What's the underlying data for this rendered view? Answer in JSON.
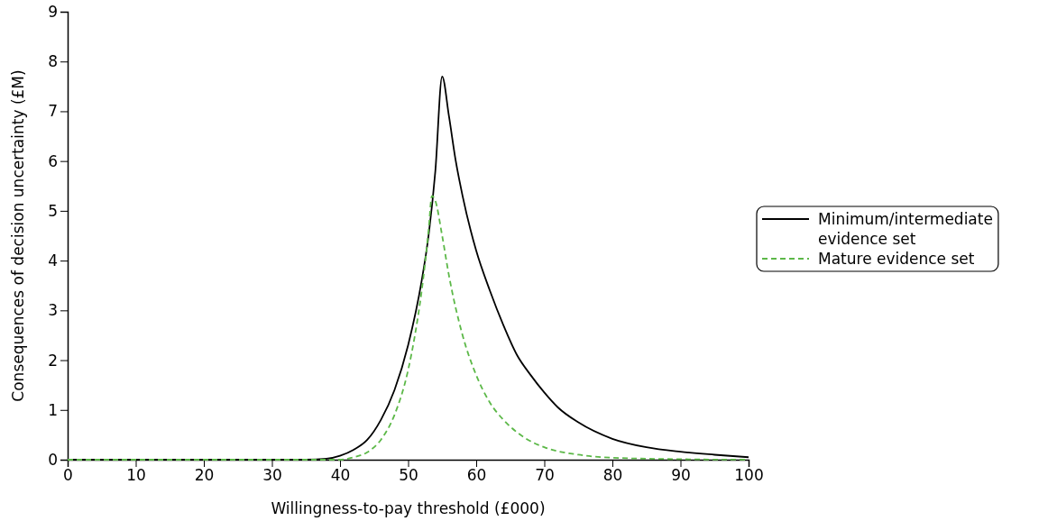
{
  "chart_data": {
    "type": "line",
    "xlabel": "Willingness-to-pay threshold (£000)",
    "ylabel": "Consequences of decision uncertainty (£M)",
    "xlim": [
      0,
      100
    ],
    "xticks": [
      0,
      10,
      20,
      30,
      40,
      50,
      60,
      70,
      80,
      90,
      100
    ],
    "ylim": [
      0,
      9
    ],
    "yticks": [
      0,
      1,
      2,
      3,
      4,
      5,
      6,
      7,
      8,
      9
    ],
    "grid": false,
    "legend": "right",
    "series": [
      {
        "name": "Minimum/intermediate evidence set",
        "color": "#000000",
        "line_style": "solid",
        "x": [
          0,
          35,
          38,
          40,
          42,
          44,
          46,
          48,
          50,
          52,
          53,
          54,
          55,
          56,
          57,
          58,
          60,
          62,
          64,
          66,
          68,
          70,
          72,
          75,
          80,
          85,
          90,
          95,
          100
        ],
        "values": [
          0,
          0,
          0.02,
          0.08,
          0.2,
          0.4,
          0.8,
          1.4,
          2.3,
          3.6,
          4.5,
          5.8,
          7.7,
          6.9,
          6.0,
          5.3,
          4.2,
          3.4,
          2.7,
          2.1,
          1.7,
          1.35,
          1.05,
          0.75,
          0.42,
          0.25,
          0.16,
          0.1,
          0.05
        ]
      },
      {
        "name": "Mature evidence set",
        "color": "#5cb848",
        "line_style": "dashed",
        "x": [
          0,
          40,
          42,
          44,
          46,
          48,
          50,
          51,
          52,
          53,
          53.5,
          54,
          55,
          56,
          58,
          60,
          62,
          64,
          66,
          68,
          70,
          75,
          80,
          90,
          100
        ],
        "values": [
          0,
          0,
          0.05,
          0.15,
          0.4,
          0.9,
          1.8,
          2.5,
          3.4,
          4.6,
          5.3,
          5.2,
          4.5,
          3.7,
          2.5,
          1.7,
          1.15,
          0.8,
          0.55,
          0.37,
          0.25,
          0.1,
          0.04,
          0.01,
          0
        ]
      }
    ]
  }
}
